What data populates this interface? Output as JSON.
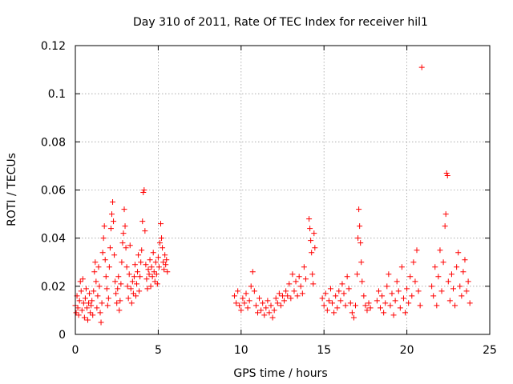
{
  "chart_data": {
    "type": "scatter",
    "title": "Day 310 of 2011, Rate Of TEC Index for receiver hil1",
    "xlabel": "GPS time / hours",
    "ylabel": "ROTI / TECUs",
    "xlim": [
      0,
      25
    ],
    "ylim": [
      0,
      0.12
    ],
    "xticks": [
      0,
      5,
      10,
      15,
      20,
      25
    ],
    "xtick_labels": [
      "0",
      "5",
      "10",
      "15",
      "20",
      "25"
    ],
    "yticks": [
      0,
      0.02,
      0.04,
      0.06,
      0.08,
      0.1,
      0.12
    ],
    "ytick_labels": [
      "0",
      "0.02",
      "0.04",
      "0.06",
      "0.08",
      "0.1",
      "0.12"
    ],
    "grid": true,
    "marker": "plus",
    "color": "#ff0000",
    "series": [
      {
        "name": "ROTI",
        "points": [
          [
            0.0,
            0.012
          ],
          [
            0.05,
            0.009
          ],
          [
            0.1,
            0.016
          ],
          [
            0.15,
            0.011
          ],
          [
            0.2,
            0.008
          ],
          [
            0.25,
            0.014
          ],
          [
            0.3,
            0.022
          ],
          [
            0.35,
            0.018
          ],
          [
            0.4,
            0.01
          ],
          [
            0.45,
            0.023
          ],
          [
            0.5,
            0.013
          ],
          [
            0.55,
            0.007
          ],
          [
            0.6,
            0.015
          ],
          [
            0.65,
            0.019
          ],
          [
            0.7,
            0.011
          ],
          [
            0.75,
            0.006
          ],
          [
            0.8,
            0.013
          ],
          [
            0.85,
            0.017
          ],
          [
            0.9,
            0.009
          ],
          [
            0.95,
            0.012
          ],
          [
            1.0,
            0.014
          ],
          [
            1.05,
            0.008
          ],
          [
            1.1,
            0.018
          ],
          [
            1.15,
            0.026
          ],
          [
            1.2,
            0.03
          ],
          [
            1.25,
            0.022
          ],
          [
            1.3,
            0.011
          ],
          [
            1.35,
            0.016
          ],
          [
            1.4,
            0.028
          ],
          [
            1.45,
            0.02
          ],
          [
            1.5,
            0.009
          ],
          [
            1.55,
            0.005
          ],
          [
            1.6,
            0.013
          ],
          [
            1.65,
            0.034
          ],
          [
            1.7,
            0.04
          ],
          [
            1.75,
            0.045
          ],
          [
            1.8,
            0.031
          ],
          [
            1.85,
            0.024
          ],
          [
            1.9,
            0.019
          ],
          [
            1.95,
            0.012
          ],
          [
            2.0,
            0.015
          ],
          [
            2.05,
            0.028
          ],
          [
            2.1,
            0.036
          ],
          [
            2.15,
            0.044
          ],
          [
            2.2,
            0.05
          ],
          [
            2.25,
            0.055
          ],
          [
            2.3,
            0.047
          ],
          [
            2.35,
            0.033
          ],
          [
            2.4,
            0.022
          ],
          [
            2.45,
            0.017
          ],
          [
            2.5,
            0.013
          ],
          [
            2.55,
            0.019
          ],
          [
            2.6,
            0.024
          ],
          [
            2.65,
            0.01
          ],
          [
            2.7,
            0.014
          ],
          [
            2.75,
            0.021
          ],
          [
            2.8,
            0.03
          ],
          [
            2.85,
            0.038
          ],
          [
            2.9,
            0.042
          ],
          [
            2.95,
            0.052
          ],
          [
            3.0,
            0.045
          ],
          [
            3.05,
            0.036
          ],
          [
            3.1,
            0.028
          ],
          [
            3.15,
            0.02
          ],
          [
            3.2,
            0.015
          ],
          [
            3.25,
            0.025
          ],
          [
            3.3,
            0.037
          ],
          [
            3.35,
            0.019
          ],
          [
            3.4,
            0.013
          ],
          [
            3.45,
            0.022
          ],
          [
            3.5,
            0.017
          ],
          [
            3.55,
            0.024
          ],
          [
            3.6,
            0.029
          ],
          [
            3.65,
            0.016
          ],
          [
            3.7,
            0.021
          ],
          [
            3.75,
            0.026
          ],
          [
            3.8,
            0.033
          ],
          [
            3.85,
            0.018
          ],
          [
            3.9,
            0.024
          ],
          [
            3.95,
            0.03
          ],
          [
            4.0,
            0.035
          ],
          [
            4.05,
            0.047
          ],
          [
            4.1,
            0.059
          ],
          [
            4.15,
            0.06
          ],
          [
            4.2,
            0.043
          ],
          [
            4.25,
            0.029
          ],
          [
            4.3,
            0.023
          ],
          [
            4.35,
            0.019
          ],
          [
            4.4,
            0.027
          ],
          [
            4.45,
            0.025
          ],
          [
            4.5,
            0.031
          ],
          [
            4.55,
            0.02
          ],
          [
            4.6,
            0.028
          ],
          [
            4.65,
            0.024
          ],
          [
            4.7,
            0.034
          ],
          [
            4.75,
            0.026
          ],
          [
            4.8,
            0.022
          ],
          [
            4.85,
            0.03
          ],
          [
            4.9,
            0.025
          ],
          [
            4.95,
            0.021
          ],
          [
            5.0,
            0.032
          ],
          [
            5.05,
            0.028
          ],
          [
            5.1,
            0.038
          ],
          [
            5.15,
            0.046
          ],
          [
            5.2,
            0.04
          ],
          [
            5.25,
            0.036
          ],
          [
            5.3,
            0.03
          ],
          [
            5.35,
            0.027
          ],
          [
            5.4,
            0.033
          ],
          [
            5.45,
            0.029
          ],
          [
            5.5,
            0.031
          ],
          [
            5.55,
            0.026
          ],
          [
            9.6,
            0.016
          ],
          [
            9.7,
            0.013
          ],
          [
            9.8,
            0.018
          ],
          [
            9.9,
            0.012
          ],
          [
            10.0,
            0.01
          ],
          [
            10.1,
            0.015
          ],
          [
            10.2,
            0.013
          ],
          [
            10.3,
            0.017
          ],
          [
            10.4,
            0.011
          ],
          [
            10.5,
            0.014
          ],
          [
            10.6,
            0.02
          ],
          [
            10.7,
            0.026
          ],
          [
            10.8,
            0.018
          ],
          [
            10.9,
            0.012
          ],
          [
            11.0,
            0.009
          ],
          [
            11.1,
            0.015
          ],
          [
            11.2,
            0.01
          ],
          [
            11.3,
            0.013
          ],
          [
            11.4,
            0.008
          ],
          [
            11.5,
            0.011
          ],
          [
            11.6,
            0.014
          ],
          [
            11.7,
            0.009
          ],
          [
            11.8,
            0.012
          ],
          [
            11.9,
            0.007
          ],
          [
            12.0,
            0.01
          ],
          [
            12.1,
            0.015
          ],
          [
            12.2,
            0.013
          ],
          [
            12.3,
            0.017
          ],
          [
            12.4,
            0.012
          ],
          [
            12.5,
            0.016
          ],
          [
            12.6,
            0.014
          ],
          [
            12.7,
            0.018
          ],
          [
            12.8,
            0.016
          ],
          [
            12.9,
            0.021
          ],
          [
            13.0,
            0.015
          ],
          [
            13.1,
            0.025
          ],
          [
            13.2,
            0.018
          ],
          [
            13.3,
            0.022
          ],
          [
            13.4,
            0.016
          ],
          [
            13.5,
            0.024
          ],
          [
            13.6,
            0.02
          ],
          [
            13.7,
            0.017
          ],
          [
            13.8,
            0.028
          ],
          [
            13.9,
            0.023
          ],
          [
            14.1,
            0.048
          ],
          [
            14.15,
            0.044
          ],
          [
            14.2,
            0.039
          ],
          [
            14.25,
            0.034
          ],
          [
            14.3,
            0.025
          ],
          [
            14.35,
            0.021
          ],
          [
            14.4,
            0.042
          ],
          [
            14.45,
            0.036
          ],
          [
            14.9,
            0.015
          ],
          [
            15.0,
            0.012
          ],
          [
            15.1,
            0.017
          ],
          [
            15.2,
            0.01
          ],
          [
            15.3,
            0.014
          ],
          [
            15.4,
            0.019
          ],
          [
            15.5,
            0.013
          ],
          [
            15.6,
            0.009
          ],
          [
            15.7,
            0.016
          ],
          [
            15.8,
            0.011
          ],
          [
            15.9,
            0.018
          ],
          [
            16.0,
            0.014
          ],
          [
            16.1,
            0.021
          ],
          [
            16.2,
            0.017
          ],
          [
            16.3,
            0.012
          ],
          [
            16.4,
            0.024
          ],
          [
            16.5,
            0.019
          ],
          [
            16.6,
            0.013
          ],
          [
            16.7,
            0.009
          ],
          [
            16.8,
            0.007
          ],
          [
            16.9,
            0.012
          ],
          [
            17.0,
            0.025
          ],
          [
            17.05,
            0.04
          ],
          [
            17.1,
            0.052
          ],
          [
            17.15,
            0.045
          ],
          [
            17.2,
            0.038
          ],
          [
            17.25,
            0.03
          ],
          [
            17.3,
            0.022
          ],
          [
            17.4,
            0.016
          ],
          [
            17.5,
            0.012
          ],
          [
            17.6,
            0.01
          ],
          [
            17.7,
            0.013
          ],
          [
            17.8,
            0.011
          ],
          [
            18.2,
            0.014
          ],
          [
            18.3,
            0.018
          ],
          [
            18.4,
            0.011
          ],
          [
            18.5,
            0.016
          ],
          [
            18.6,
            0.009
          ],
          [
            18.7,
            0.013
          ],
          [
            18.8,
            0.02
          ],
          [
            18.9,
            0.025
          ],
          [
            19.0,
            0.012
          ],
          [
            19.1,
            0.017
          ],
          [
            19.2,
            0.008
          ],
          [
            19.3,
            0.014
          ],
          [
            19.4,
            0.022
          ],
          [
            19.5,
            0.018
          ],
          [
            19.6,
            0.011
          ],
          [
            19.7,
            0.028
          ],
          [
            19.8,
            0.015
          ],
          [
            19.9,
            0.009
          ],
          [
            20.0,
            0.019
          ],
          [
            20.1,
            0.013
          ],
          [
            20.2,
            0.024
          ],
          [
            20.3,
            0.016
          ],
          [
            20.4,
            0.03
          ],
          [
            20.5,
            0.022
          ],
          [
            20.6,
            0.035
          ],
          [
            20.7,
            0.018
          ],
          [
            20.8,
            0.012
          ],
          [
            20.9,
            0.111
          ],
          [
            21.5,
            0.02
          ],
          [
            21.6,
            0.016
          ],
          [
            21.7,
            0.028
          ],
          [
            21.8,
            0.012
          ],
          [
            21.9,
            0.024
          ],
          [
            22.0,
            0.035
          ],
          [
            22.1,
            0.018
          ],
          [
            22.2,
            0.03
          ],
          [
            22.3,
            0.045
          ],
          [
            22.35,
            0.05
          ],
          [
            22.4,
            0.067
          ],
          [
            22.45,
            0.066
          ],
          [
            22.5,
            0.022
          ],
          [
            22.6,
            0.014
          ],
          [
            22.7,
            0.025
          ],
          [
            22.8,
            0.019
          ],
          [
            22.9,
            0.012
          ],
          [
            23.0,
            0.028
          ],
          [
            23.1,
            0.034
          ],
          [
            23.2,
            0.02
          ],
          [
            23.3,
            0.016
          ],
          [
            23.4,
            0.026
          ],
          [
            23.5,
            0.031
          ],
          [
            23.6,
            0.018
          ],
          [
            23.7,
            0.022
          ],
          [
            23.8,
            0.013
          ]
        ]
      }
    ]
  }
}
